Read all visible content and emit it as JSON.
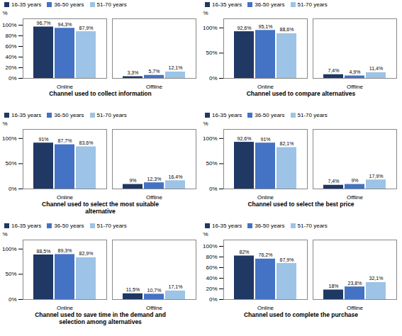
{
  "chart_data": [
    {
      "type": "bar",
      "title": "Channel used to collect information",
      "ylabel": "%",
      "legend": "upper left",
      "data_labels": true,
      "grid": false,
      "categories": [
        "Online",
        "Offline"
      ],
      "series": [
        {
          "name": "16-35 years",
          "color": "#1f3864",
          "values": [
            96.7,
            3.3
          ],
          "value_labels": [
            "96,7%",
            "3,3%"
          ]
        },
        {
          "name": "36-50 years",
          "color": "#4472c4",
          "values": [
            94.3,
            5.7
          ],
          "value_labels": [
            "94,3%",
            "5,7%"
          ]
        },
        {
          "name": "51-70 years",
          "color": "#9dc3e6",
          "values": [
            87.9,
            12.1
          ],
          "value_labels": [
            "87,9%",
            "12,1%"
          ]
        }
      ],
      "ylim": [
        0,
        112
      ],
      "yticks": [
        {
          "value": 0,
          "label": "0%"
        },
        {
          "value": 20,
          "label": "20%"
        },
        {
          "value": 40,
          "label": "40%"
        },
        {
          "value": 60,
          "label": "60%"
        },
        {
          "value": 80,
          "label": "80%"
        },
        {
          "value": 100,
          "label": "100%"
        }
      ]
    },
    {
      "type": "bar",
      "title": "Channel used to compare alternatives",
      "ylabel": "%",
      "legend": "upper left",
      "data_labels": true,
      "grid": false,
      "categories": [
        "Online",
        "Offline"
      ],
      "series": [
        {
          "name": "16-35 years",
          "color": "#1f3864",
          "values": [
            92.6,
            7.4
          ],
          "value_labels": [
            "92,6%",
            "7,4%"
          ]
        },
        {
          "name": "36-50 years",
          "color": "#4472c4",
          "values": [
            95.1,
            4.9
          ],
          "value_labels": [
            "95,1%",
            "4,9%"
          ]
        },
        {
          "name": "51-70 years",
          "color": "#9dc3e6",
          "values": [
            88.6,
            11.4
          ],
          "value_labels": [
            "88,6%",
            "11,4%"
          ]
        }
      ],
      "ylim": [
        0,
        118
      ],
      "yticks": [
        {
          "value": 0,
          "label": "0%"
        },
        {
          "value": 50,
          "label": "50%"
        },
        {
          "value": 100,
          "label": "100%"
        }
      ]
    },
    {
      "type": "bar",
      "title": "Channel used to select the most suitable\nalternative",
      "ylabel": "%",
      "legend": "upper left",
      "data_labels": true,
      "grid": false,
      "categories": [
        "Online",
        "Offline"
      ],
      "series": [
        {
          "name": "16-35 years",
          "color": "#1f3864",
          "values": [
            91,
            9
          ],
          "value_labels": [
            "91%",
            "9%"
          ]
        },
        {
          "name": "36-50 years",
          "color": "#4472c4",
          "values": [
            87.7,
            12.3
          ],
          "value_labels": [
            "87,7%",
            "12,3%"
          ]
        },
        {
          "name": "51-70 years",
          "color": "#9dc3e6",
          "values": [
            83.6,
            16.4
          ],
          "value_labels": [
            "83,6%",
            "16,4%"
          ]
        }
      ],
      "ylim": [
        0,
        118
      ],
      "yticks": [
        {
          "value": 0,
          "label": "0%"
        },
        {
          "value": 50,
          "label": "50%"
        },
        {
          "value": 100,
          "label": "100%"
        }
      ]
    },
    {
      "type": "bar",
      "title": "Channel used to select the best price",
      "ylabel": "%",
      "legend": "upper left",
      "data_labels": true,
      "grid": false,
      "categories": [
        "Online",
        "Offline"
      ],
      "series": [
        {
          "name": "16-35 years",
          "color": "#1f3864",
          "values": [
            92.6,
            7.4
          ],
          "value_labels": [
            "92,6%",
            "7,4%"
          ]
        },
        {
          "name": "36-50 years",
          "color": "#4472c4",
          "values": [
            91,
            9
          ],
          "value_labels": [
            "91%",
            "9%"
          ]
        },
        {
          "name": "51-70 years",
          "color": "#9dc3e6",
          "values": [
            82.1,
            17.9
          ],
          "value_labels": [
            "82,1%",
            "17,9%"
          ]
        }
      ],
      "ylim": [
        0,
        118
      ],
      "yticks": [
        {
          "value": 0,
          "label": "0%"
        },
        {
          "value": 50,
          "label": "50%"
        },
        {
          "value": 100,
          "label": "100%"
        }
      ]
    },
    {
      "type": "bar",
      "title": "Channel used to save time in the demand and\nselection among alternatives",
      "ylabel": "%",
      "legend": "upper left",
      "data_labels": true,
      "grid": false,
      "categories": [
        "Online",
        "Offline"
      ],
      "series": [
        {
          "name": "16-35 years",
          "color": "#1f3864",
          "values": [
            88.5,
            11.5
          ],
          "value_labels": [
            "88,5%",
            "11,5%"
          ]
        },
        {
          "name": "36-50 years",
          "color": "#4472c4",
          "values": [
            89.3,
            10.7
          ],
          "value_labels": [
            "89,3%",
            "10,7%"
          ]
        },
        {
          "name": "51-70 years",
          "color": "#9dc3e6",
          "values": [
            82.9,
            17.1
          ],
          "value_labels": [
            "82,9%",
            "17,1%"
          ]
        }
      ],
      "ylim": [
        0,
        118
      ],
      "yticks": [
        {
          "value": 0,
          "label": "0%"
        },
        {
          "value": 50,
          "label": "50%"
        },
        {
          "value": 100,
          "label": "100%"
        }
      ]
    },
    {
      "type": "bar",
      "title": "Channel used to complete the purchase",
      "ylabel": "%",
      "legend": "upper left",
      "data_labels": true,
      "grid": false,
      "categories": [
        "Online",
        "Offline"
      ],
      "series": [
        {
          "name": "16-35 years",
          "color": "#1f3864",
          "values": [
            82,
            18
          ],
          "value_labels": [
            "82%",
            "18%"
          ]
        },
        {
          "name": "36-50 years",
          "color": "#4472c4",
          "values": [
            76.2,
            23.8
          ],
          "value_labels": [
            "76,2%",
            "23,8%"
          ]
        },
        {
          "name": "51-70 years",
          "color": "#9dc3e6",
          "values": [
            67.9,
            32.1
          ],
          "value_labels": [
            "67,9%",
            "32,1%"
          ]
        }
      ],
      "ylim": [
        0,
        112
      ],
      "yticks": [
        {
          "value": 0,
          "label": "0%"
        },
        {
          "value": 20,
          "label": "20%"
        },
        {
          "value": 40,
          "label": "40%"
        },
        {
          "value": 60,
          "label": "60%"
        },
        {
          "value": 80,
          "label": "80%"
        },
        {
          "value": 100,
          "label": "100%"
        }
      ]
    }
  ]
}
